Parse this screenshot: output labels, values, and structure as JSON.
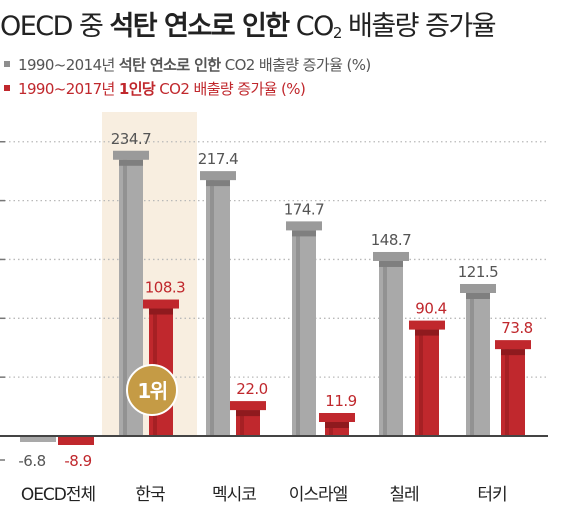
{
  "title": {
    "pre": "OECD 중 ",
    "bold": "석탄 연소로 인한",
    "post1": " CO",
    "sub": "2",
    "post2": " 배출량 증가율"
  },
  "legend": {
    "gray": {
      "pre": "1990~2014년 ",
      "bold": "석탄 연소로 인한",
      "post": " CO2 배출량 증가율 (%)",
      "color": "#a9a9a9"
    },
    "red": {
      "pre": "1990~2017년 ",
      "bold": "1인당",
      "post": " CO2 배출량 증가율 (%)",
      "color": "#c0282d"
    }
  },
  "badge": {
    "label": "1위",
    "color": "#c59b45",
    "category": "한국"
  },
  "chart_data": {
    "type": "bar",
    "title": "OECD 중 석탄 연소로 인한 CO2 배출량 증가율",
    "categories": [
      "OECD전체",
      "한국",
      "멕시코",
      "이스라엘",
      "칠레",
      "터키"
    ],
    "series": [
      {
        "name": "1990~2014년 석탄 연소로 인한 CO2 배출량 증가율 (%)",
        "values": [
          -6.8,
          234.7,
          217.4,
          174.7,
          148.7,
          121.5
        ],
        "labels": [
          "-6.8",
          "234.7",
          "217.4",
          "174.7",
          "148.7",
          "121.5"
        ],
        "color": "#a9a9a9"
      },
      {
        "name": "1990~2017년 1인당 CO2 배출량 증가율 (%)",
        "values": [
          -8.9,
          108.3,
          22.0,
          11.9,
          90.4,
          73.8
        ],
        "labels": [
          "-8.9",
          "108.3",
          "22.0",
          "11.9",
          "90.4",
          "73.8"
        ],
        "color": "#c0282d"
      }
    ],
    "highlight": "한국",
    "gridlines": [
      50,
      100,
      150,
      200,
      250
    ],
    "ylim": [
      -10,
      260
    ],
    "grid": true
  }
}
